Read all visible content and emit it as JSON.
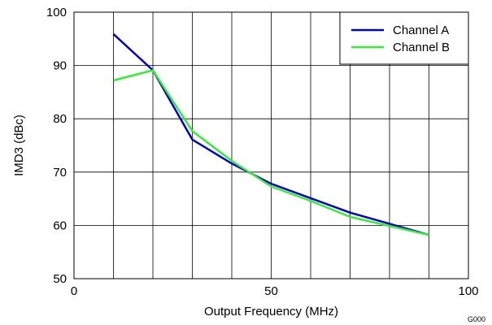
{
  "chart_data": {
    "type": "line",
    "title": "",
    "xlabel": "Output Frequency (MHz)",
    "ylabel": "IMD3 (dBc)",
    "xlim": [
      0,
      100
    ],
    "ylim": [
      50,
      100
    ],
    "x_ticks": [
      0,
      50,
      100
    ],
    "y_ticks": [
      50,
      60,
      70,
      80,
      90,
      100
    ],
    "grid": true,
    "legend_position": "top-right",
    "series": [
      {
        "name": "Channel A",
        "color": "#0000cc",
        "x": [
          10,
          20,
          30,
          40,
          50,
          60,
          70,
          80,
          90
        ],
        "y": [
          95.9,
          89.1,
          76.1,
          71.6,
          67.8,
          65.1,
          62.4,
          60.3,
          58.2
        ]
      },
      {
        "name": "Channel B",
        "color": "#33ee33",
        "x": [
          10,
          20,
          30,
          40,
          50,
          60,
          70,
          80,
          90
        ],
        "y": [
          87.2,
          89.1,
          77.7,
          72.1,
          67.3,
          64.6,
          61.6,
          59.9,
          58.2
        ]
      }
    ],
    "note": "G000"
  }
}
